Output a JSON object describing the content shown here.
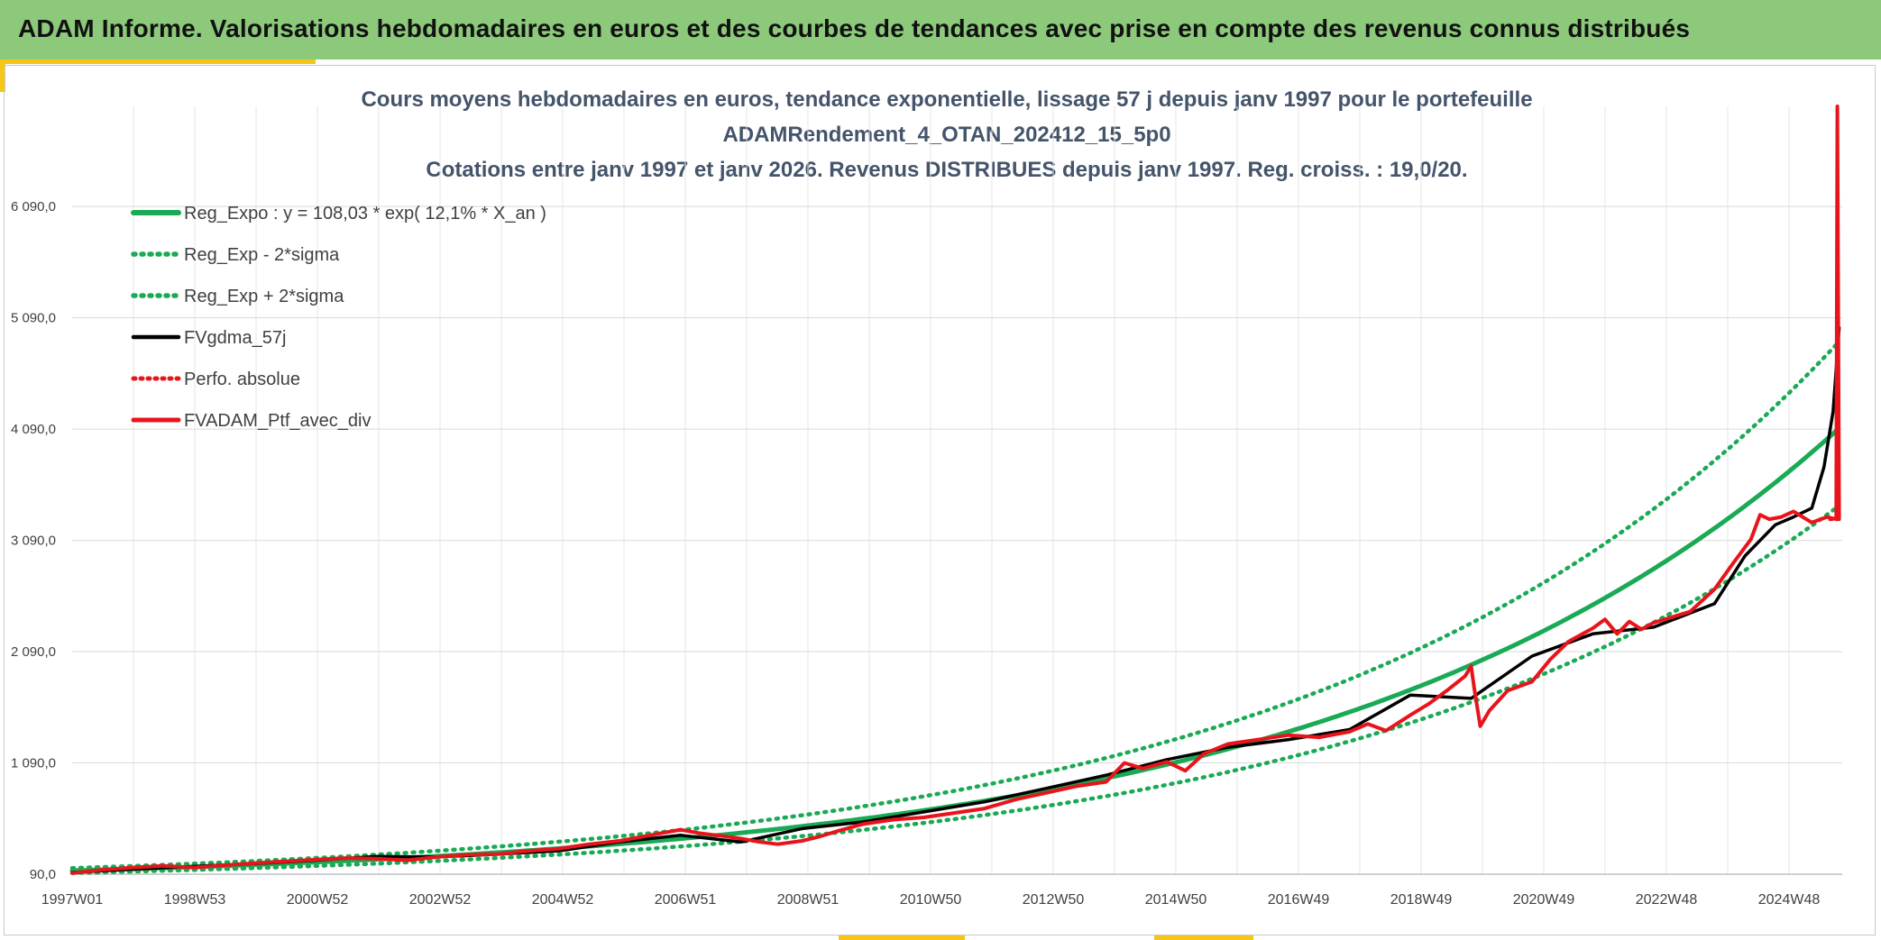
{
  "header": {
    "title": "ADAM Informe. Valorisations hebdomadaires en euros et des courbes de tendances avec prise en compte des revenus connus distribués"
  },
  "chart_data": {
    "type": "line",
    "title_lines": [
      "Cours moyens hebdomadaires en euros, tendance exponentielle, lissage 57 j depuis janv 1997 pour le portefeuille",
      "ADAMRendement_4_OTAN_202412_15_5p0",
      "Cotations entre janv 1997 et janv 2026. Revenus DISTRIBUES depuis janv 1997. Reg. croiss. : 19,0/20."
    ],
    "x_ticks": [
      "1997W01",
      "1998W53",
      "2000W52",
      "2002W52",
      "2004W52",
      "2006W51",
      "2008W51",
      "2010W50",
      "2012W50",
      "2014W50",
      "2016W49",
      "2018W49",
      "2020W49",
      "2022W48",
      "2024W48"
    ],
    "x_range": [
      1997.0,
      2026.1
    ],
    "y_ticks": [
      90,
      1090,
      2090,
      3090,
      4090,
      5090,
      6090
    ],
    "y_tick_labels": [
      "90,0",
      "1 090,0",
      "2 090,0",
      "3 090,0",
      "4 090,0",
      "5 090,0",
      "6 090,0"
    ],
    "ylim": [
      90,
      6990
    ],
    "grid": true,
    "legend_position": "top-left",
    "colors": {
      "green": "#1aaa55",
      "black": "#000000",
      "red": "#e8141c"
    },
    "series": [
      {
        "name": "Reg_Expo : y = 108,03 * exp( 12,1% *  X_an )",
        "style": "green-solid",
        "formula": {
          "a": 108.03,
          "b": 0.121,
          "factor": 1.0
        }
      },
      {
        "name": "Reg_Exp - 2*sigma",
        "style": "green-dotted",
        "formula": {
          "a": 108.03,
          "b": 0.121,
          "factor": 0.83
        }
      },
      {
        "name": "Reg_Exp + 2*sigma",
        "style": "green-dotted",
        "formula": {
          "a": 108.03,
          "b": 0.121,
          "factor": 1.19
        }
      },
      {
        "name": "FVgdma_57j",
        "style": "black-solid",
        "x": [
          1997.0,
          1998.0,
          1999.0,
          2000.0,
          2001.0,
          2002.0,
          2003.0,
          2004.0,
          2005.0,
          2006.0,
          2007.0,
          2008.0,
          2009.0,
          2010.0,
          2011.0,
          2012.0,
          2013.0,
          2014.0,
          2015.0,
          2016.0,
          2017.0,
          2018.0,
          2019.0,
          2020.0,
          2021.0,
          2022.0,
          2023.0,
          2024.0,
          2024.5,
          2025.0,
          2025.3,
          2025.6,
          2025.8,
          2025.95,
          2026.05
        ],
        "y": [
          105,
          135,
          160,
          185,
          215,
          250,
          245,
          270,
          300,
          380,
          440,
          380,
          500,
          560,
          650,
          740,
          860,
          980,
          1120,
          1230,
          1300,
          1390,
          1700,
          1670,
          2050,
          2250,
          2310,
          2520,
          2950,
          3230,
          3300,
          3380,
          3750,
          4250,
          5000
        ]
      },
      {
        "name": "Perfo. absolue",
        "style": "red-dotted",
        "x": [
          2025.9,
          2026.05
        ],
        "y": [
          3280,
          3280
        ]
      },
      {
        "name": "FVADAM_Ptf_avec_div",
        "style": "red-solid",
        "x": [
          1997.0,
          1997.5,
          1998.0,
          1998.5,
          1999.0,
          1999.5,
          2000.0,
          2000.5,
          2001.0,
          2001.5,
          2002.0,
          2002.5,
          2003.0,
          2003.5,
          2004.0,
          2004.5,
          2005.0,
          2005.5,
          2006.0,
          2006.5,
          2007.0,
          2007.3,
          2007.6,
          2008.0,
          2008.3,
          2008.6,
          2009.0,
          2009.3,
          2009.6,
          2010.0,
          2010.5,
          2011.0,
          2011.5,
          2012.0,
          2012.5,
          2013.0,
          2013.5,
          2014.0,
          2014.3,
          2014.6,
          2015.0,
          2015.3,
          2015.6,
          2016.0,
          2016.5,
          2017.0,
          2017.5,
          2018.0,
          2018.3,
          2018.6,
          2019.0,
          2019.3,
          2019.6,
          2019.9,
          2020.0,
          2020.05,
          2020.15,
          2020.3,
          2020.6,
          2021.0,
          2021.3,
          2021.6,
          2022.0,
          2022.2,
          2022.4,
          2022.6,
          2022.8,
          2023.0,
          2023.3,
          2023.6,
          2024.0,
          2024.3,
          2024.6,
          2024.75,
          2024.9,
          2025.1,
          2025.3,
          2025.6,
          2025.85,
          2026.0,
          2026.02,
          2026.05
        ],
        "y": [
          100,
          130,
          150,
          165,
          150,
          170,
          190,
          205,
          220,
          235,
          230,
          215,
          245,
          265,
          270,
          300,
          320,
          360,
          390,
          440,
          490,
          460,
          440,
          410,
          380,
          360,
          390,
          430,
          480,
          540,
          580,
          600,
          640,
          680,
          760,
          820,
          880,
          920,
          1090,
          1040,
          1100,
          1020,
          1170,
          1260,
          1300,
          1340,
          1320,
          1370,
          1440,
          1380,
          1520,
          1620,
          1740,
          1870,
          1960,
          1760,
          1420,
          1560,
          1740,
          1820,
          2020,
          2180,
          2300,
          2380,
          2250,
          2360,
          2290,
          2350,
          2400,
          2450,
          2650,
          2880,
          3100,
          3320,
          3280,
          3300,
          3350,
          3250,
          3300,
          3280,
          7000,
          3290
        ]
      }
    ]
  }
}
